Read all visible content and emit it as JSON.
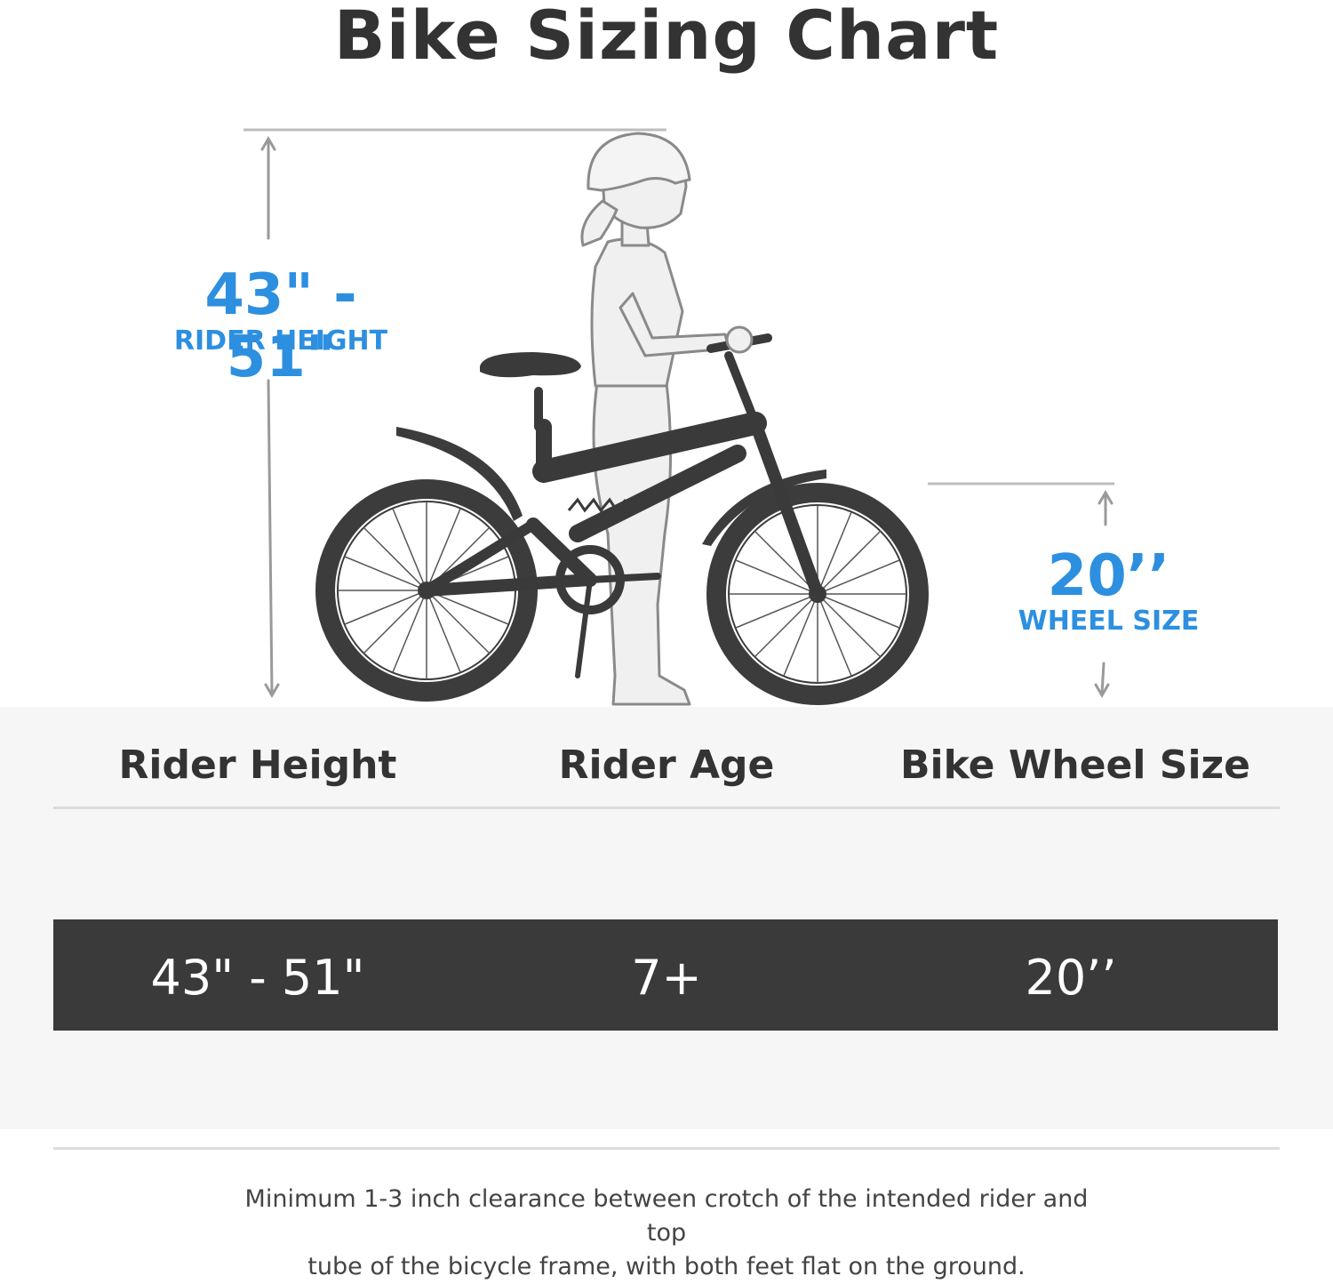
{
  "title": "Bike Sizing Chart",
  "illustration": {
    "rider_height_value": "43\" - 51\"",
    "rider_height_label": "RIDER HEIGHT",
    "wheel_size_value": "20’’",
    "wheel_size_label": "WHEEL SIZE"
  },
  "table": {
    "headers": [
      "Rider Height",
      "Rider Age",
      "Bike Wheel Size"
    ],
    "row": [
      "43\" - 51\"",
      "7+",
      "20’’"
    ]
  },
  "note": {
    "line1": "Minimum 1-3 inch clearance between crotch of the intended rider and top",
    "line2": "tube of the bicycle frame, with both feet flat on the ground."
  },
  "colors": {
    "accent_blue": "#2d8fe0",
    "dark": "#333333",
    "band": "#3a3a3a"
  }
}
